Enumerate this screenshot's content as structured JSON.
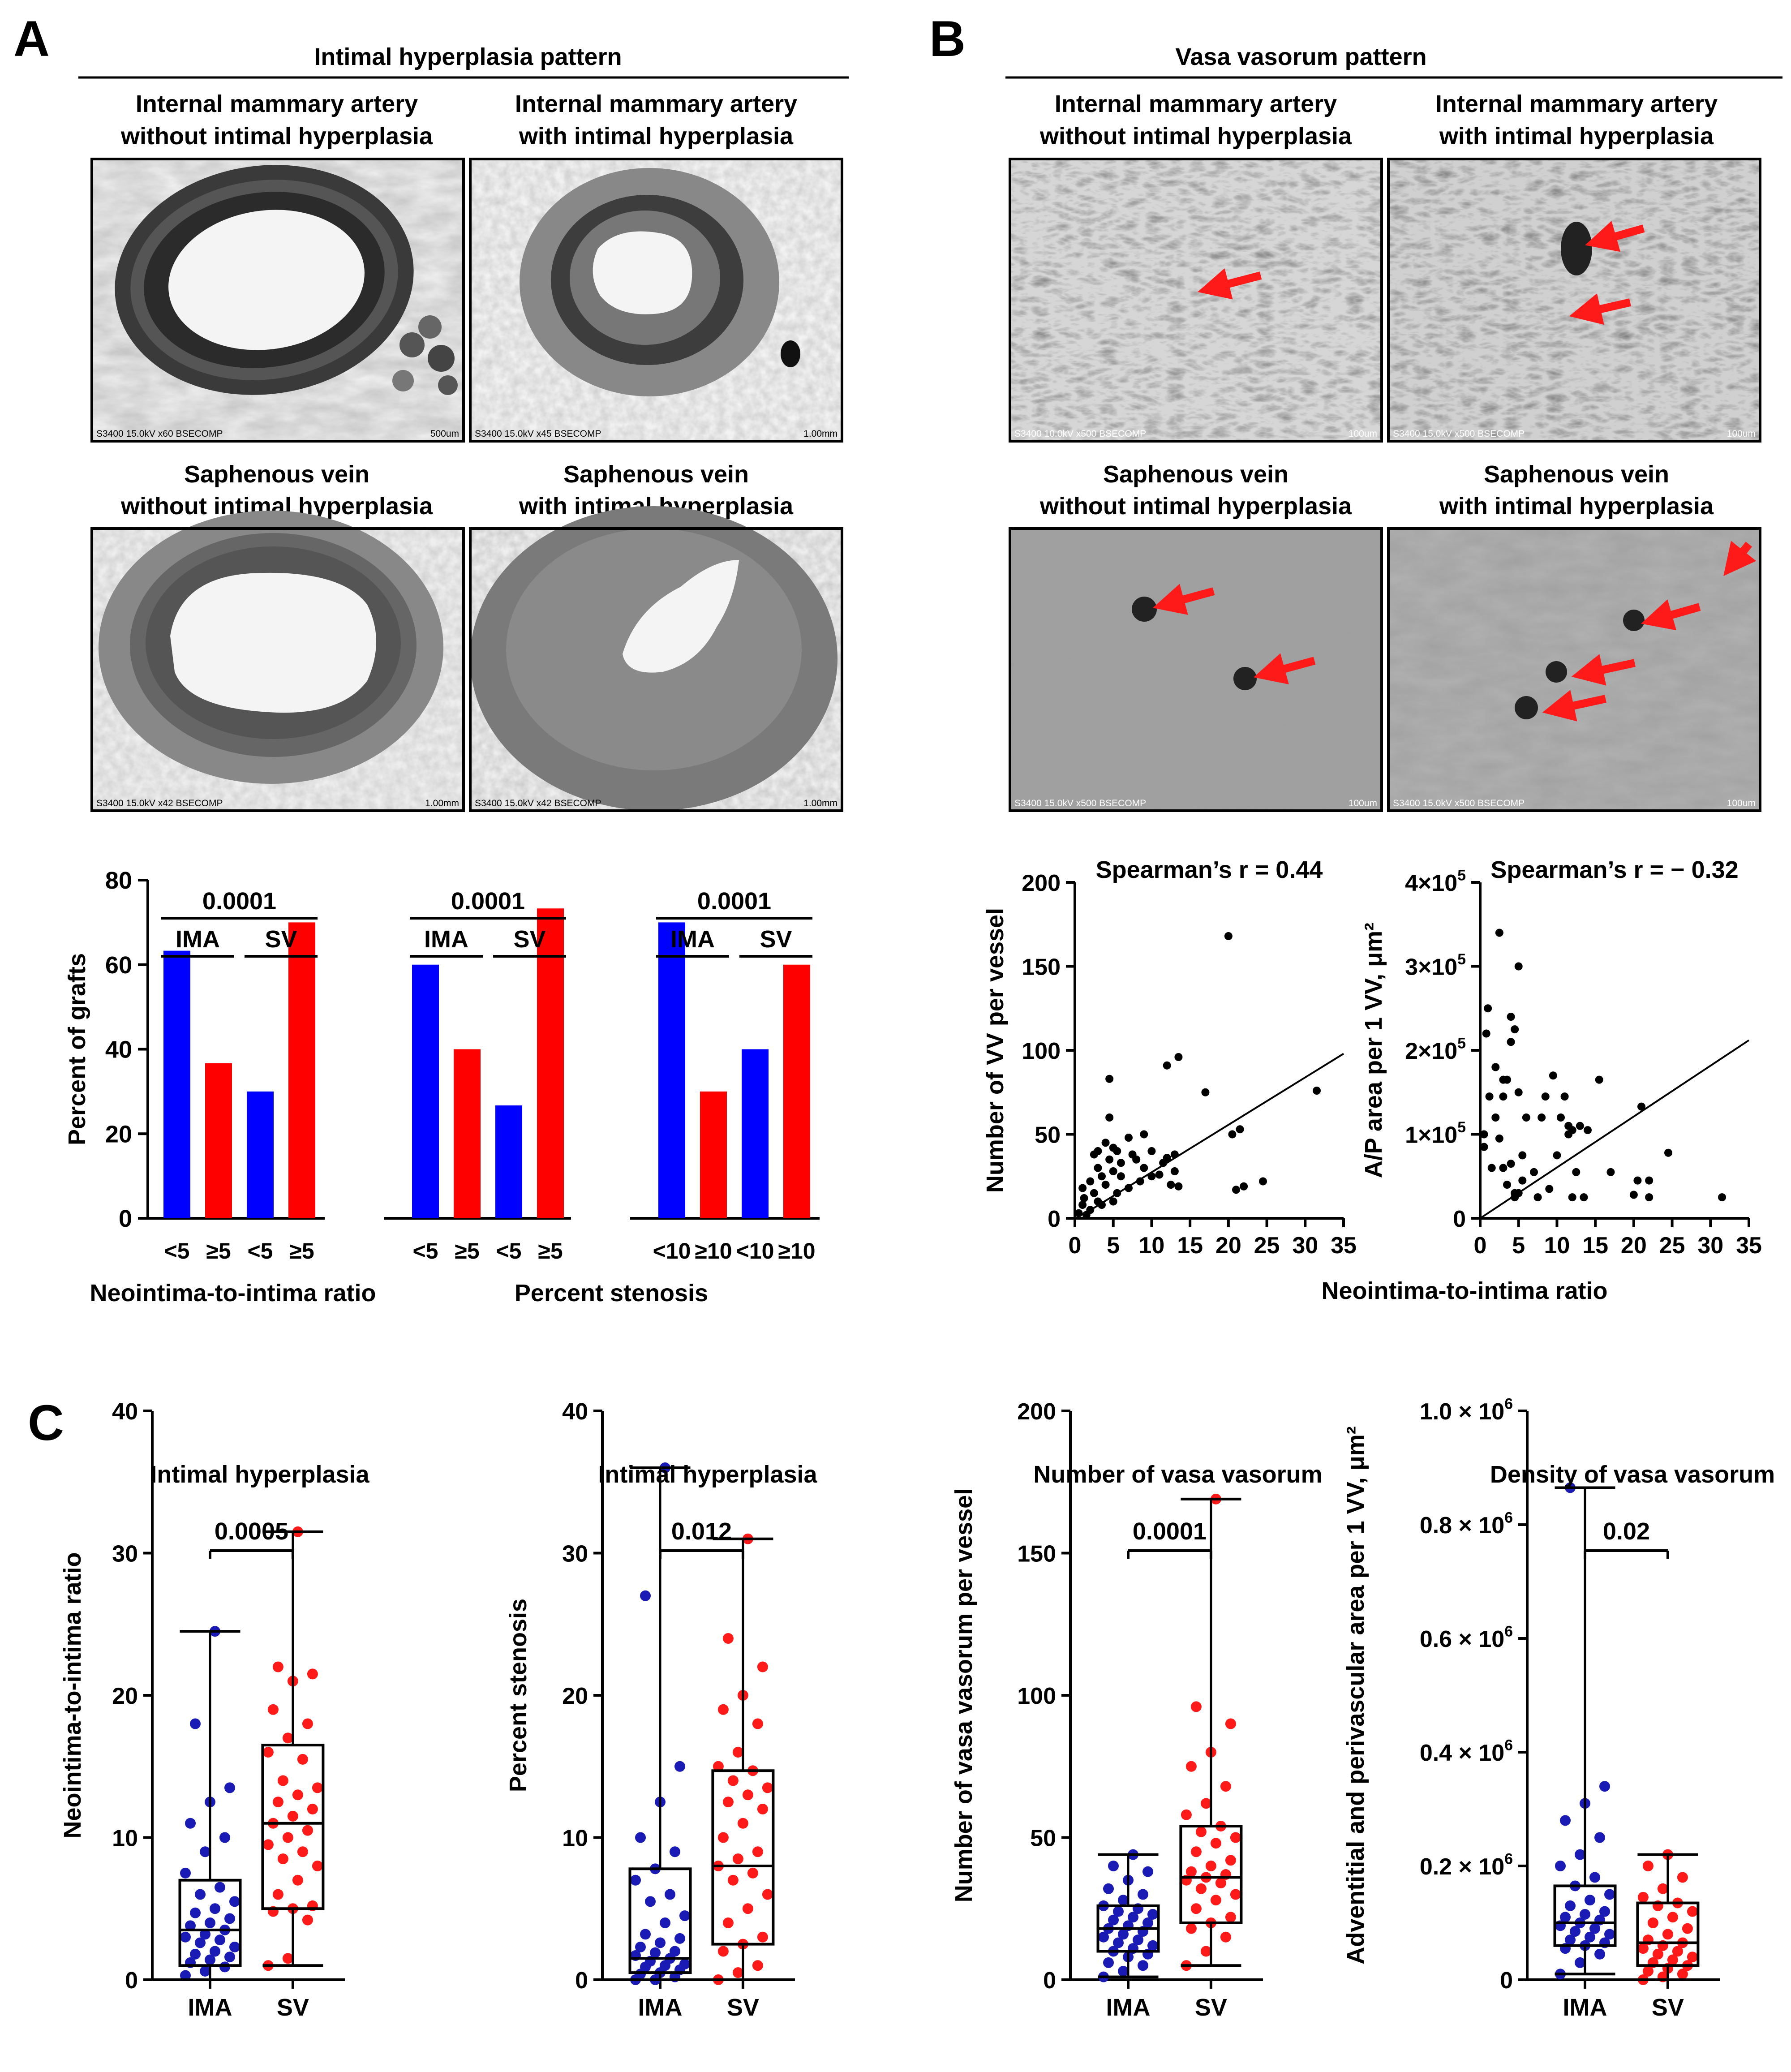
{
  "panel_labels": {
    "a": "A",
    "b": "B",
    "c": "C"
  },
  "panel_a": {
    "header": "Intimal hyperplasia pattern",
    "images": [
      {
        "title1": "Internal mammary artery",
        "title2": "without intimal hyperplasia",
        "info": "S3400 15.0kV x60 BSECOMP",
        "scale": "500um"
      },
      {
        "title1": "Internal mammary artery",
        "title2": "with intimal hyperplasia",
        "info": "S3400 15.0kV x45 BSECOMP",
        "scale": "1.00mm"
      },
      {
        "title1": "Saphenous vein",
        "title2": "without intimal hyperplasia",
        "info": "S3400 15.0kV x42 BSECOMP",
        "scale": "1.00mm"
      },
      {
        "title1": "Saphenous vein",
        "title2": "with intimal hyperplasia",
        "info": "S3400 15.0kV x42 BSECOMP",
        "scale": "1.00mm"
      }
    ]
  },
  "panel_b": {
    "header": "Vasa vasorum pattern",
    "images": [
      {
        "title1": "Internal mammary artery",
        "title2": "without intimal hyperplasia",
        "info": "S3400 10.0kV x500 BSECOMP",
        "scale": "100um"
      },
      {
        "title1": "Internal mammary artery",
        "title2": "with intimal hyperplasia",
        "info": "S3400 15.0kV x500 BSECOMP",
        "scale": "100um"
      },
      {
        "title1": "Saphenous vein",
        "title2": "without intimal hyperplasia",
        "info": "S3400 15.0kV x500 BSECOMP",
        "scale": "100um"
      },
      {
        "title1": "Saphenous vein",
        "title2": "with intimal hyperplasia",
        "info": "S3400 15.0kV x500 BSECOMP",
        "scale": "100um"
      }
    ]
  },
  "colors": {
    "ima": "#0000ff",
    "sv": "#ff0000",
    "ima_dot": "#1a1ab4",
    "sv_dot": "#ff1a1a"
  },
  "chart_data": [
    {
      "id": "bar",
      "type": "bar",
      "ylabel": "Percent of grafts",
      "ylim": [
        0,
        80
      ],
      "yticks": [
        0,
        20,
        40,
        60,
        80
      ],
      "groups": [
        {
          "xlabel": "Neointima-to-intima ratio",
          "p_value": "0.0001",
          "left_label": "IMA",
          "right_label": "SV",
          "categories": [
            "<5",
            "≥5",
            "<5",
            "≥5"
          ],
          "values": [
            63.3,
            36.7,
            30,
            70
          ]
        },
        {
          "xlabel": "Percent stenosis",
          "p_value": "0.0001",
          "left_label": "IMA",
          "right_label": "SV",
          "categories": [
            "<5",
            "≥5",
            "<5",
            "≥5"
          ],
          "values": [
            60,
            40,
            26.7,
            73.3
          ]
        },
        {
          "xlabel": "",
          "p_value": "0.0001",
          "left_label": "IMA",
          "right_label": "SV",
          "categories": [
            "<10",
            "≥10",
            "<10",
            "≥10"
          ],
          "values": [
            70,
            30,
            40,
            60
          ]
        }
      ]
    },
    {
      "id": "scatter1",
      "type": "scatter",
      "title": "Spearman’s r = 0.44",
      "ylabel": "Number of VV per vessel",
      "xlabel": "Neointima-to-intima ratio",
      "xlim": [
        0,
        35
      ],
      "ylim": [
        0,
        200
      ],
      "xticks": [
        0,
        5,
        10,
        15,
        20,
        25,
        30,
        35
      ],
      "yticks": [
        0,
        50,
        100,
        150,
        200
      ],
      "fit_line": [
        [
          1,
          2
        ],
        [
          35,
          98
        ]
      ],
      "points": [
        [
          0.5,
          3
        ],
        [
          1,
          8
        ],
        [
          1,
          18
        ],
        [
          1.2,
          12
        ],
        [
          1.5,
          2
        ],
        [
          2,
          5
        ],
        [
          2,
          22
        ],
        [
          2.5,
          38
        ],
        [
          2.5,
          15
        ],
        [
          3,
          10
        ],
        [
          3,
          30
        ],
        [
          3,
          40
        ],
        [
          3.5,
          25
        ],
        [
          3.5,
          8
        ],
        [
          4,
          20
        ],
        [
          4,
          45
        ],
        [
          4.5,
          35
        ],
        [
          4.5,
          60
        ],
        [
          4.5,
          83
        ],
        [
          5,
          10
        ],
        [
          5,
          28
        ],
        [
          5,
          42
        ],
        [
          5.5,
          15
        ],
        [
          5.5,
          40
        ],
        [
          6,
          25
        ],
        [
          6,
          33
        ],
        [
          7,
          18
        ],
        [
          7,
          48
        ],
        [
          7.5,
          38
        ],
        [
          8,
          35
        ],
        [
          8.5,
          22
        ],
        [
          9,
          30
        ],
        [
          9,
          50
        ],
        [
          10,
          25
        ],
        [
          10,
          40
        ],
        [
          11,
          26
        ],
        [
          11.5,
          33
        ],
        [
          12,
          36
        ],
        [
          12,
          91
        ],
        [
          12.5,
          20
        ],
        [
          13,
          38
        ],
        [
          13,
          28
        ],
        [
          13.5,
          19
        ],
        [
          13.5,
          96
        ],
        [
          17,
          75
        ],
        [
          20,
          168
        ],
        [
          20.5,
          50
        ],
        [
          21,
          17
        ],
        [
          21.5,
          53
        ],
        [
          22,
          19
        ],
        [
          24.5,
          22
        ],
        [
          31.5,
          76
        ]
      ]
    },
    {
      "id": "scatter2",
      "type": "scatter",
      "title": "Spearman’s r = − 0.32",
      "ylabel": "A/P area per 1 VV, μm²",
      "xlabel": "Neointima-to-intima ratio",
      "xlim": [
        0,
        35
      ],
      "ylim": [
        0,
        400000
      ],
      "xticks": [
        0,
        5,
        10,
        15,
        20,
        25,
        30,
        35
      ],
      "yticks": [
        0,
        100000,
        200000,
        300000,
        400000
      ],
      "ytick_labels": [
        [
          "0",
          ""
        ],
        [
          "1×10",
          "5"
        ],
        [
          "2×10",
          "5"
        ],
        [
          "3×10",
          "5"
        ],
        [
          "4×10",
          "5"
        ]
      ],
      "fit_line": [
        [
          0,
          0
        ],
        [
          35,
          212000
        ]
      ],
      "points": [
        [
          0.5,
          85000
        ],
        [
          0.5,
          100000
        ],
        [
          0.8,
          220000
        ],
        [
          1,
          250000
        ],
        [
          1.2,
          145000
        ],
        [
          1.5,
          60000
        ],
        [
          2,
          120000
        ],
        [
          2,
          180000
        ],
        [
          2.5,
          95000
        ],
        [
          2.5,
          340000
        ],
        [
          3,
          60000
        ],
        [
          3,
          145000
        ],
        [
          3,
          165000
        ],
        [
          3.5,
          40000
        ],
        [
          3.5,
          165000
        ],
        [
          4,
          65000
        ],
        [
          4,
          210000
        ],
        [
          4,
          240000
        ],
        [
          4.5,
          25000
        ],
        [
          4.5,
          30000
        ],
        [
          4.5,
          225000
        ],
        [
          5,
          30000
        ],
        [
          5,
          150000
        ],
        [
          5,
          300000
        ],
        [
          5.5,
          45000
        ],
        [
          5.5,
          75000
        ],
        [
          6,
          120000
        ],
        [
          7,
          55000
        ],
        [
          7.5,
          25000
        ],
        [
          8,
          120000
        ],
        [
          8.5,
          145000
        ],
        [
          9,
          35000
        ],
        [
          9.5,
          170000
        ],
        [
          10,
          75000
        ],
        [
          10.5,
          120000
        ],
        [
          11,
          145000
        ],
        [
          11.5,
          100000
        ],
        [
          11.5,
          110000
        ],
        [
          12,
          25000
        ],
        [
          12,
          105000
        ],
        [
          12.5,
          55000
        ],
        [
          13,
          110000
        ],
        [
          13.5,
          25000
        ],
        [
          14,
          105000
        ],
        [
          15.5,
          165000
        ],
        [
          17,
          55000
        ],
        [
          20,
          28000
        ],
        [
          20.5,
          45000
        ],
        [
          21,
          133000
        ],
        [
          22,
          45000
        ],
        [
          22,
          25000
        ],
        [
          24.5,
          78000
        ],
        [
          31.5,
          25000
        ]
      ]
    },
    {
      "id": "box1",
      "type": "box",
      "title": "Intimal hyperplasia",
      "ylabel": "Neointima-to-intima ratio",
      "ylim": [
        0,
        40
      ],
      "yticks": [
        0,
        10,
        20,
        30,
        40
      ],
      "p_value": "0.0005",
      "categories": [
        "IMA",
        "SV"
      ],
      "boxes": [
        {
          "min": 0,
          "q1": 1,
          "median": 3.5,
          "q3": 7,
          "max": 24.5,
          "points": [
            0.3,
            0.6,
            0.9,
            1.2,
            1.4,
            1.6,
            1.8,
            2,
            2.3,
            2.6,
            2.8,
            3,
            3.2,
            3.5,
            3.8,
            4,
            4.3,
            4.7,
            5,
            5.5,
            6,
            6.5,
            7.5,
            9,
            10,
            11,
            12.5,
            13.5,
            18,
            24.5
          ]
        },
        {
          "min": 1,
          "q1": 5,
          "median": 11,
          "q3": 16.5,
          "max": 31.5,
          "points": [
            1,
            1.5,
            4.2,
            4.8,
            5,
            5.2,
            6,
            7,
            8,
            8.5,
            9,
            9.5,
            10,
            10.5,
            11,
            11.5,
            12,
            12.5,
            13,
            13.5,
            14,
            15.5,
            16,
            17,
            18,
            19,
            21,
            21.5,
            22,
            31.5
          ]
        }
      ]
    },
    {
      "id": "box2",
      "type": "box",
      "title": "Intimal hyperplasia",
      "ylabel": "Percent stenosis",
      "ylim": [
        0,
        40
      ],
      "yticks": [
        0,
        10,
        20,
        30,
        40
      ],
      "p_value": "0.012",
      "categories": [
        "IMA",
        "SV"
      ],
      "boxes": [
        {
          "min": 0,
          "q1": 0.5,
          "median": 1.5,
          "q3": 7.8,
          "max": 36,
          "points": [
            0,
            0,
            0.2,
            0.4,
            0.5,
            0.7,
            0.9,
            1,
            1.1,
            1.3,
            1.5,
            1.7,
            1.9,
            2,
            2.3,
            2.6,
            2.9,
            3.2,
            4,
            4.5,
            5.5,
            6,
            7,
            7.8,
            9,
            10,
            12.5,
            15,
            27,
            36
          ]
        },
        {
          "min": 0,
          "q1": 2.5,
          "median": 8,
          "q3": 14.7,
          "max": 31,
          "points": [
            0,
            0.5,
            1,
            2,
            2.5,
            3,
            4,
            5,
            6,
            7,
            7.5,
            8,
            8.5,
            9,
            10,
            11,
            12,
            12.5,
            13,
            13.5,
            14,
            14.7,
            15,
            16,
            18,
            19,
            20,
            22,
            24,
            31
          ]
        }
      ]
    },
    {
      "id": "box3",
      "type": "box",
      "title": "Number of vasa vasorum",
      "ylabel": "Number of vasa vasorum per vessel",
      "ylim": [
        0,
        200
      ],
      "yticks": [
        0,
        50,
        100,
        150,
        200
      ],
      "p_value": "0.0001",
      "categories": [
        "IMA",
        "SV"
      ],
      "boxes": [
        {
          "min": 1,
          "q1": 10,
          "median": 18,
          "q3": 26,
          "max": 44,
          "points": [
            1,
            3,
            5,
            6,
            8,
            9,
            10,
            11,
            12,
            13,
            14,
            15,
            16,
            17,
            18,
            19,
            20,
            21,
            22,
            23,
            24,
            25,
            26,
            28,
            30,
            32,
            35,
            38,
            40,
            44
          ]
        },
        {
          "min": 5,
          "q1": 20,
          "median": 36,
          "q3": 54,
          "max": 169,
          "points": [
            5,
            10,
            15,
            18,
            20,
            22,
            25,
            28,
            30,
            32,
            34,
            35,
            36,
            37,
            38,
            40,
            42,
            45,
            48,
            50,
            52,
            54,
            58,
            62,
            68,
            75,
            80,
            90,
            96,
            169
          ]
        }
      ]
    },
    {
      "id": "box4",
      "type": "box",
      "title": "Density of vasa vasorum",
      "ylabel": "Adventitial and perivascular area per 1 VV, μm²",
      "ylim": [
        0,
        1000000
      ],
      "yticks": [
        0,
        200000,
        400000,
        600000,
        800000,
        1000000
      ],
      "ytick_labels": [
        [
          "0",
          ""
        ],
        [
          "0.2 × 10",
          "6"
        ],
        [
          "0.4 × 10",
          "6"
        ],
        [
          "0.6 × 10",
          "6"
        ],
        [
          "0.8 × 10",
          "6"
        ],
        [
          "1.0 × 10",
          "6"
        ]
      ],
      "p_value": "0.02",
      "categories": [
        "IMA",
        "SV"
      ],
      "boxes": [
        {
          "min": 10000,
          "q1": 60000,
          "median": 100000,
          "q3": 165000,
          "max": 865000,
          "points": [
            10000,
            30000,
            45000,
            55000,
            60000,
            65000,
            70000,
            75000,
            80000,
            85000,
            90000,
            95000,
            100000,
            105000,
            110000,
            115000,
            120000,
            130000,
            140000,
            150000,
            165000,
            180000,
            200000,
            220000,
            250000,
            280000,
            310000,
            340000,
            865000
          ]
        },
        {
          "min": 0,
          "q1": 25000,
          "median": 65000,
          "q3": 135000,
          "max": 220000,
          "points": [
            0,
            5000,
            10000,
            15000,
            20000,
            25000,
            30000,
            35000,
            40000,
            45000,
            50000,
            55000,
            60000,
            65000,
            70000,
            80000,
            90000,
            100000,
            110000,
            120000,
            130000,
            135000,
            145000,
            160000,
            180000,
            200000,
            220000
          ]
        }
      ]
    }
  ]
}
